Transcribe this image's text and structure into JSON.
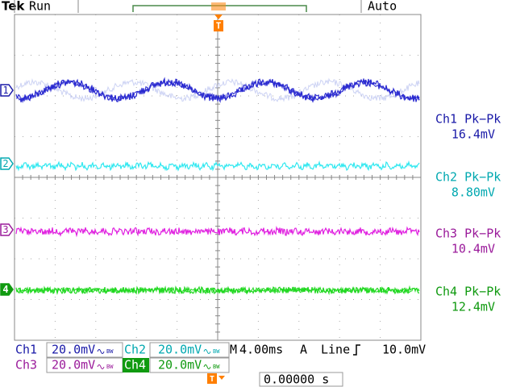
{
  "header": {
    "brand": "Tek",
    "state": "Run",
    "trigger_mode": "Auto",
    "trigger_marker": "T"
  },
  "channels": [
    {
      "marker": "1",
      "measurement": "Ch1 Pk−Pk",
      "value": "16.4mV"
    },
    {
      "marker": "2",
      "measurement": "Ch2 Pk−Pk",
      "value": "8.80mV"
    },
    {
      "marker": "3",
      "measurement": "Ch3 Pk−Pk",
      "value": "10.4mV"
    },
    {
      "marker": "4",
      "measurement": "Ch4 Pk−Pk",
      "value": "12.4mV"
    }
  ],
  "settings": {
    "ch1": {
      "label": "Ch1",
      "scale": "20.0mV"
    },
    "ch2": {
      "label": "Ch2",
      "scale": "20.0mV"
    },
    "ch3": {
      "label": "Ch3",
      "scale": "20.0mV"
    },
    "ch4": {
      "label": "Ch4",
      "scale": "20.0mV"
    },
    "bw": "BW",
    "timebase_label": "M",
    "timebase": "4.00ms",
    "trigger_label": "A",
    "trigger_source": "Line",
    "trigger_level": "10.0mV"
  },
  "trigger_position": {
    "marker": "T",
    "value": "0.00000 s"
  }
}
